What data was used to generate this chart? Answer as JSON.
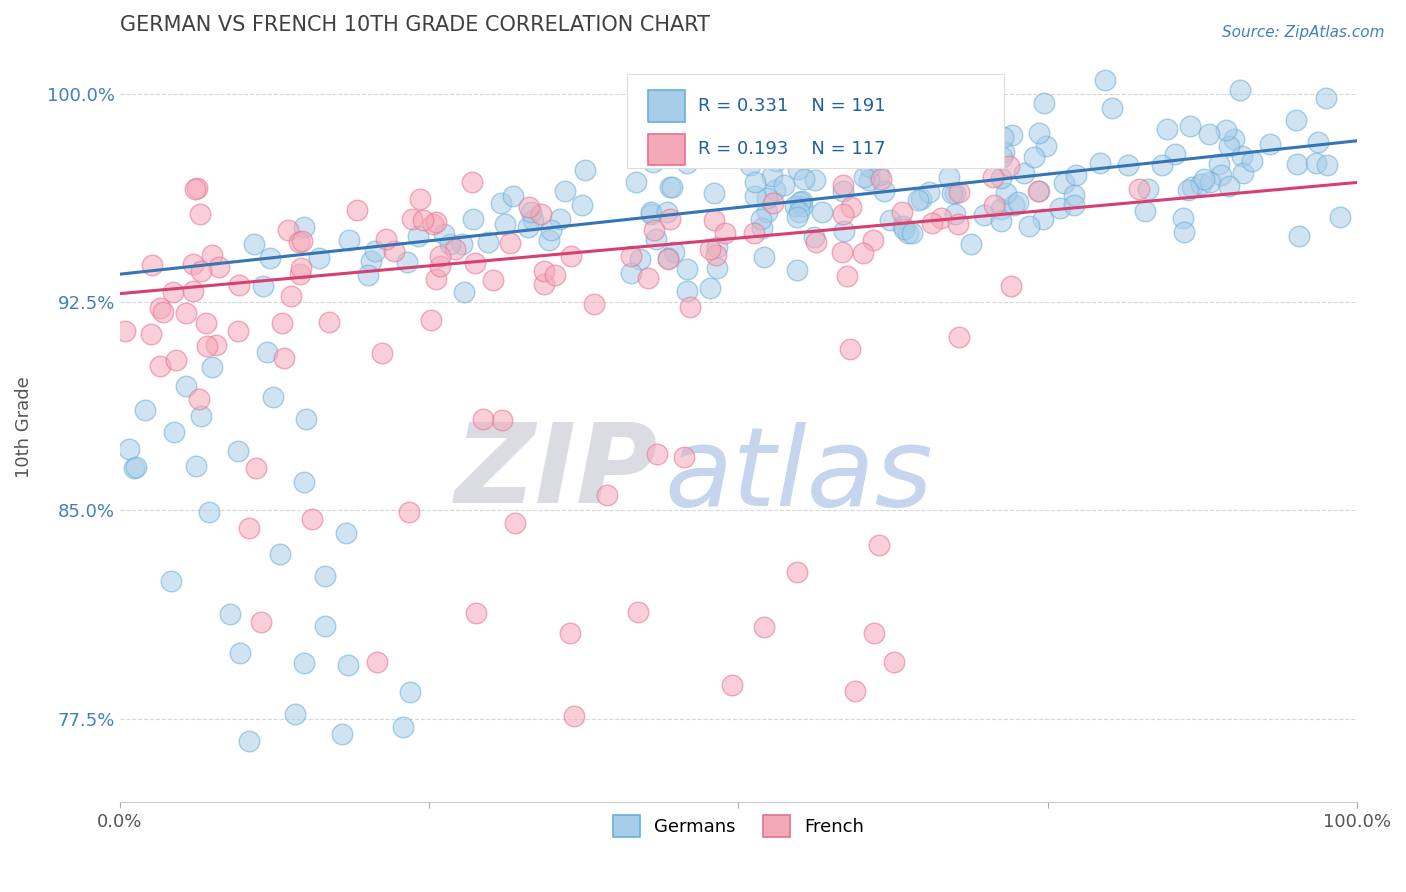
{
  "title": "GERMAN VS FRENCH 10TH GRADE CORRELATION CHART",
  "source_text": "Source: ZipAtlas.com",
  "xlabel": "",
  "ylabel": "10th Grade",
  "xlim": [
    0.0,
    1.0
  ],
  "ylim": [
    0.745,
    1.015
  ],
  "xticks": [
    0.0,
    0.25,
    0.5,
    0.75,
    1.0
  ],
  "xticklabels": [
    "0.0%",
    "",
    "",
    "",
    "100.0%"
  ],
  "ytick_positions": [
    0.775,
    0.85,
    0.925,
    1.0
  ],
  "ytick_labels": [
    "77.5%",
    "85.0%",
    "92.5%",
    "100.0%"
  ],
  "german_color": "#a8cde8",
  "french_color": "#f4a9b8",
  "german_edge": "#6aaed6",
  "french_edge": "#e87090",
  "blue_line_color": "#3575b5",
  "pink_line_color": "#d64070",
  "legend_r_german": "R = 0.331",
  "legend_n_german": "N = 191",
  "legend_r_french": "R = 0.193",
  "legend_n_french": "N = 117",
  "legend_label_german": "Germans",
  "legend_label_french": "French",
  "watermark_zip": "ZIP",
  "watermark_atlas": "atlas",
  "watermark_zip_color": "#d8d8e0",
  "watermark_atlas_color": "#b0c8e8",
  "title_color": "#404040",
  "source_color": "#4080c0",
  "axis_label_color": "#555555",
  "ytick_color": "#4080c0",
  "background_color": "#ffffff",
  "german_n": 191,
  "french_n": 117,
  "german_intercept": 0.935,
  "german_slope": 0.048,
  "french_intercept": 0.928,
  "french_slope": 0.04
}
